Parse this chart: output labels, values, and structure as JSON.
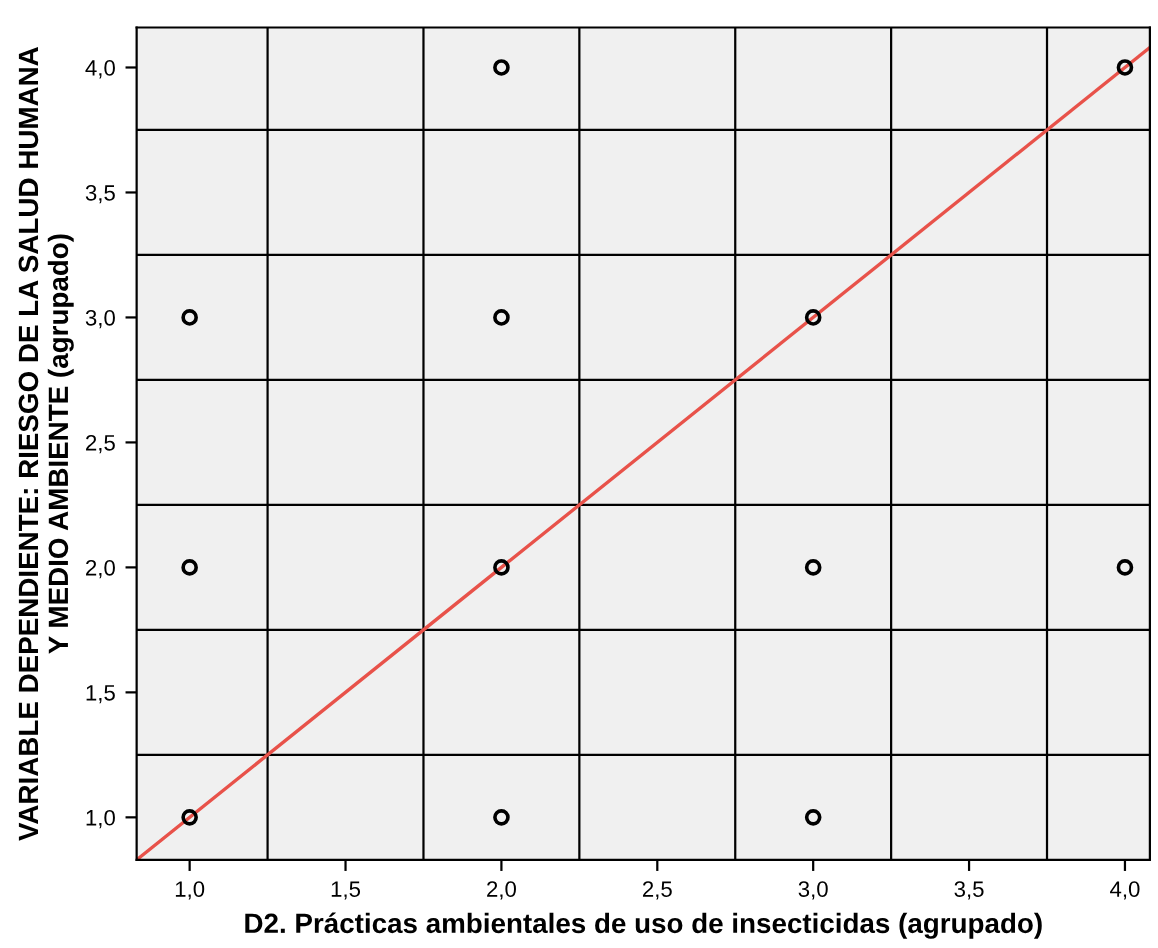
{
  "chart_data": {
    "type": "scatter",
    "xlabel": "D2. Prácticas ambientales de uso de insecticidas (agrupado)",
    "ylabel": "VARIABLE DEPENDIENTE: RIESGO DE LA SALUD HUMANA\nY MEDIO AMBIENTE (agrupado)",
    "series": [
      {
        "color": "#000000",
        "marker": "circle",
        "x": [
          1,
          1,
          1,
          2,
          2,
          2,
          2,
          3,
          3,
          3,
          4,
          4
        ],
        "values": [
          1,
          2,
          3,
          1,
          2,
          3,
          4,
          1,
          2,
          3,
          2,
          4
        ]
      },
      {
        "type": "line",
        "color": "#e8524a",
        "marker": "none",
        "x": [
          0.83,
          4.08
        ],
        "values": [
          0.83,
          4.08
        ]
      }
    ],
    "xlim": [
      0.83,
      4.08
    ],
    "ylim": [
      0.83,
      4.16
    ],
    "xticks": [
      {
        "value": 1.0,
        "label": "1,0"
      },
      {
        "value": 1.25,
        "label": null
      },
      {
        "value": 1.5,
        "label": "1,5"
      },
      {
        "value": 1.75,
        "label": null
      },
      {
        "value": 2.0,
        "label": "2,0"
      },
      {
        "value": 2.25,
        "label": null
      },
      {
        "value": 2.5,
        "label": "2,5"
      },
      {
        "value": 2.75,
        "label": null
      },
      {
        "value": 3.0,
        "label": "3,0"
      },
      {
        "value": 3.25,
        "label": null
      },
      {
        "value": 3.5,
        "label": "3,5"
      },
      {
        "value": 3.75,
        "label": null
      },
      {
        "value": 4.0,
        "label": "4,0"
      }
    ],
    "yticks": [
      {
        "value": 1.0,
        "label": "1,0"
      },
      {
        "value": 1.25,
        "label": null
      },
      {
        "value": 1.5,
        "label": "1,5"
      },
      {
        "value": 1.75,
        "label": null
      },
      {
        "value": 2.0,
        "label": "2,0"
      },
      {
        "value": 2.25,
        "label": null
      },
      {
        "value": 2.5,
        "label": "2,5"
      },
      {
        "value": 2.75,
        "label": null
      },
      {
        "value": 3.0,
        "label": "3,0"
      },
      {
        "value": 3.25,
        "label": null
      },
      {
        "value": 3.5,
        "label": "3,5"
      },
      {
        "value": 3.75,
        "label": null
      },
      {
        "value": 4.0,
        "label": "4,0"
      }
    ],
    "grid": true,
    "legend": false
  }
}
